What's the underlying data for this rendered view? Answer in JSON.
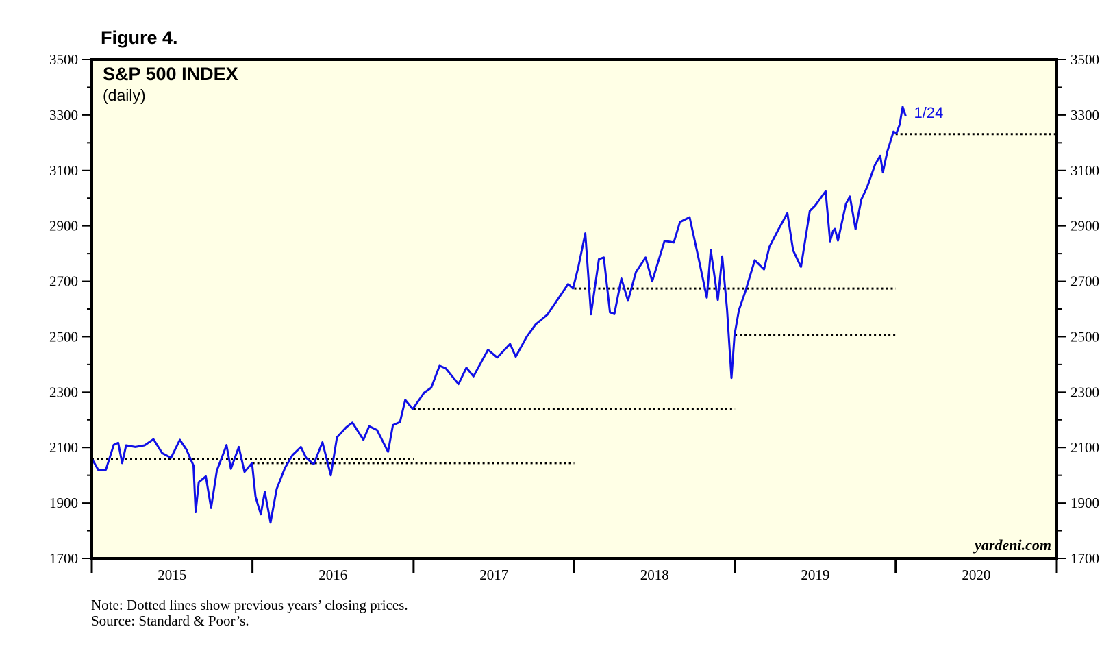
{
  "figure_label": "Figure 4.",
  "notes": {
    "note": "Note: Dotted lines show previous years’ closing prices.",
    "source": "Source: Standard & Poor’s."
  },
  "colors": {
    "line": "#1010e6",
    "background": "#ffffe6",
    "dotted": "#000000",
    "annotation": "#1010e6"
  },
  "chart_data": {
    "type": "line",
    "title": "S&P 500 INDEX",
    "subtitle": "(daily)",
    "credit": "yardeni.com",
    "xlabel": "",
    "ylabel": "",
    "x_range": [
      "2015-01-01",
      "2021-01-01"
    ],
    "ylim": [
      1700,
      3500
    ],
    "y_ticks": [
      1700,
      1900,
      2100,
      2300,
      2500,
      2700,
      2900,
      3100,
      3300,
      3500
    ],
    "y_tick_labels": [
      "1700",
      "1900",
      "2100",
      "2300",
      "2500",
      "2700",
      "2900",
      "3100",
      "3300",
      "3500"
    ],
    "x_tick_labels": [
      "2015",
      "2016",
      "2017",
      "2018",
      "2019",
      "2020"
    ],
    "grid": false,
    "annotation": {
      "text": "1/24",
      "x": "2020-01-24",
      "y": 3295
    },
    "series": [
      {
        "x": [
          "2015-01-02",
          "2015-01-16",
          "2015-02-02",
          "2015-02-20",
          "2015-03-02",
          "2015-03-11",
          "2015-03-20",
          "2015-04-10",
          "2015-05-01",
          "2015-05-21",
          "2015-06-10",
          "2015-06-30",
          "2015-07-20",
          "2015-08-04",
          "2015-08-20",
          "2015-08-25",
          "2015-09-01",
          "2015-09-17",
          "2015-09-29",
          "2015-10-12",
          "2015-10-26",
          "2015-11-03",
          "2015-11-13",
          "2015-12-01",
          "2015-12-14",
          "2015-12-31",
          "2016-01-08",
          "2016-01-20",
          "2016-01-29",
          "2016-02-11",
          "2016-02-25",
          "2016-03-15",
          "2016-04-01",
          "2016-04-20",
          "2016-05-02",
          "2016-05-19",
          "2016-06-08",
          "2016-06-27",
          "2016-07-11",
          "2016-08-01",
          "2016-08-15",
          "2016-09-09",
          "2016-09-22",
          "2016-10-10",
          "2016-11-04",
          "2016-11-15",
          "2016-12-01",
          "2016-12-13",
          "2016-12-30",
          "2017-01-25",
          "2017-02-10",
          "2017-03-01",
          "2017-03-15",
          "2017-04-13",
          "2017-05-01",
          "2017-05-17",
          "2017-06-19",
          "2017-07-10",
          "2017-08-08",
          "2017-08-21",
          "2017-09-15",
          "2017-10-05",
          "2017-11-01",
          "2017-12-18",
          "2017-12-29",
          "2018-01-10",
          "2018-01-26",
          "2018-02-08",
          "2018-02-26",
          "2018-03-09",
          "2018-03-23",
          "2018-04-02",
          "2018-04-18",
          "2018-05-03",
          "2018-05-21",
          "2018-06-12",
          "2018-06-27",
          "2018-07-25",
          "2018-08-15",
          "2018-08-29",
          "2018-09-20",
          "2018-10-10",
          "2018-10-29",
          "2018-11-07",
          "2018-11-23",
          "2018-12-03",
          "2018-12-14",
          "2018-12-24",
          "2018-12-31",
          "2019-01-10",
          "2019-01-25",
          "2019-02-15",
          "2019-03-08",
          "2019-03-20",
          "2019-04-10",
          "2019-04-30",
          "2019-05-13",
          "2019-05-31",
          "2019-06-20",
          "2019-07-02",
          "2019-07-26",
          "2019-08-05",
          "2019-08-12",
          "2019-08-16",
          "2019-08-23",
          "2019-09-10",
          "2019-09-19",
          "2019-10-02",
          "2019-10-15",
          "2019-10-28",
          "2019-11-15",
          "2019-11-27",
          "2019-12-03",
          "2019-12-13",
          "2019-12-27",
          "2020-01-03",
          "2020-01-10",
          "2020-01-17",
          "2020-01-24"
        ],
        "y": [
          2058,
          2019,
          2020,
          2110,
          2117,
          2044,
          2108,
          2102,
          2108,
          2130,
          2080,
          2063,
          2128,
          2093,
          2035,
          1867,
          1975,
          1996,
          1882,
          2017,
          2075,
          2109,
          2023,
          2102,
          2012,
          2044,
          1922,
          1859,
          1940,
          1829,
          1951,
          2027,
          2073,
          2102,
          2063,
          2040,
          2119,
          2000,
          2137,
          2173,
          2190,
          2128,
          2177,
          2163,
          2085,
          2181,
          2192,
          2272,
          2239,
          2298,
          2316,
          2395,
          2386,
          2329,
          2388,
          2357,
          2453,
          2425,
          2474,
          2428,
          2500,
          2544,
          2580,
          2690,
          2674,
          2750,
          2873,
          2581,
          2780,
          2786,
          2588,
          2582,
          2710,
          2630,
          2733,
          2786,
          2700,
          2846,
          2840,
          2914,
          2931,
          2785,
          2641,
          2813,
          2633,
          2790,
          2600,
          2351,
          2507,
          2596,
          2665,
          2776,
          2743,
          2824,
          2888,
          2946,
          2812,
          2752,
          2954,
          2973,
          3025,
          2844,
          2883,
          2889,
          2847,
          2979,
          3006,
          2888,
          2995,
          3039,
          3120,
          3153,
          3093,
          3168,
          3240,
          3235,
          3265,
          3330,
          3295
        ]
      }
    ],
    "previous_year_closes": [
      {
        "from": "2015-01-01",
        "to": "2017-01-01",
        "y": 2059
      },
      {
        "from": "2016-01-01",
        "to": "2018-01-01",
        "y": 2044
      },
      {
        "from": "2017-01-01",
        "to": "2019-01-01",
        "y": 2239
      },
      {
        "from": "2018-01-01",
        "to": "2020-01-01",
        "y": 2674
      },
      {
        "from": "2019-01-01",
        "to": "2020-01-01",
        "y": 2507
      },
      {
        "from": "2020-01-01",
        "to": "2021-01-01",
        "y": 3231
      }
    ]
  }
}
